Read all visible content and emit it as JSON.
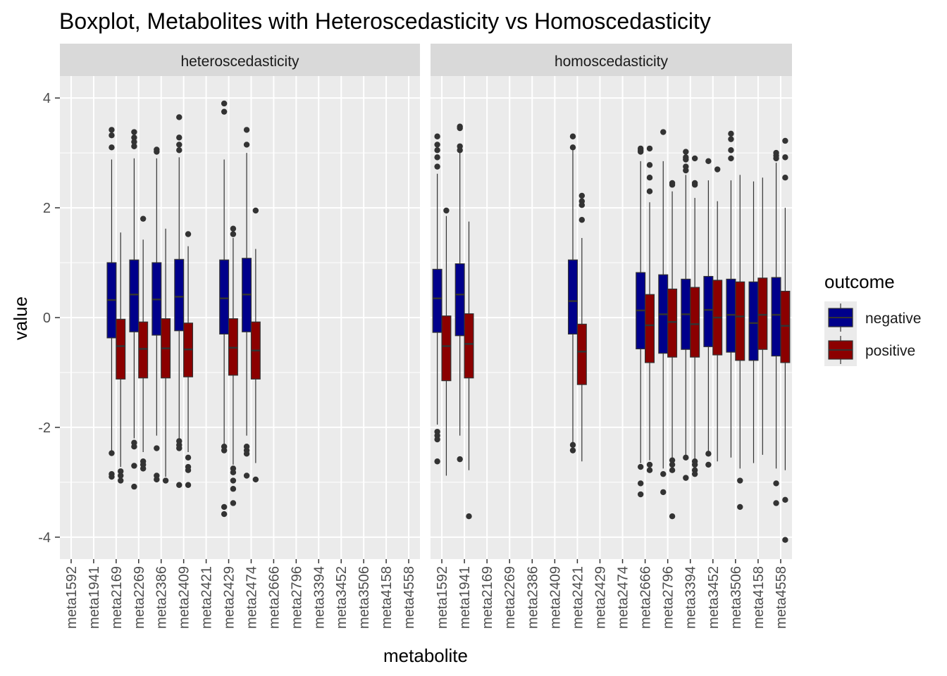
{
  "chart_data": {
    "type": "boxplot",
    "title": "Boxplot, Metabolites with Heteroscedasticity vs Homoscedasticity",
    "xlabel": "metabolite",
    "ylabel": "value",
    "ylim": [
      -4.4,
      4.4
    ],
    "y_ticks": [
      4,
      2,
      0,
      -2,
      -4
    ],
    "grid": true,
    "legend": {
      "title": "outcome",
      "position": "right",
      "entries": [
        {
          "name": "negative",
          "color": "#00008B"
        },
        {
          "name": "positive",
          "color": "#8B0000"
        }
      ]
    },
    "categories": [
      "meta1592",
      "meta1941",
      "meta2169",
      "meta2269",
      "meta2386",
      "meta2409",
      "meta2421",
      "meta2429",
      "meta2474",
      "meta2666",
      "meta2796",
      "meta3394",
      "meta3452",
      "meta3506",
      "meta4158",
      "meta4558"
    ],
    "panels": [
      {
        "label": "heteroscedasticity",
        "boxes": [
          {
            "category": "meta2169",
            "outcome": "negative",
            "q1": -0.37,
            "median": 0.32,
            "q3": 1.0,
            "whisker_low": -2.45,
            "whisker_high": 2.88,
            "outliers": [
              3.42,
              3.32,
              3.1,
              -2.47,
              -2.85,
              -2.9
            ]
          },
          {
            "category": "meta2169",
            "outcome": "positive",
            "q1": -1.12,
            "median": -0.52,
            "q3": -0.03,
            "whisker_low": -2.72,
            "whisker_high": 1.55,
            "outliers": [
              -2.8,
              -2.88,
              -2.97
            ]
          },
          {
            "category": "meta2269",
            "outcome": "negative",
            "q1": -0.26,
            "median": 0.42,
            "q3": 1.05,
            "whisker_low": -2.2,
            "whisker_high": 2.9,
            "outliers": [
              3.38,
              3.28,
              3.2,
              3.12,
              -2.28,
              -2.35,
              -2.7,
              -3.08
            ]
          },
          {
            "category": "meta2269",
            "outcome": "positive",
            "q1": -1.1,
            "median": -0.57,
            "q3": -0.08,
            "whisker_low": -2.45,
            "whisker_high": 1.42,
            "outliers": [
              1.8,
              -2.62,
              -2.68,
              -2.75
            ]
          },
          {
            "category": "meta2386",
            "outcome": "negative",
            "q1": -0.32,
            "median": 0.33,
            "q3": 1.0,
            "whisker_low": -2.15,
            "whisker_high": 2.9,
            "outliers": [
              3.06,
              3.02,
              -2.38,
              -2.88,
              -2.95
            ]
          },
          {
            "category": "meta2386",
            "outcome": "positive",
            "q1": -1.1,
            "median": -0.56,
            "q3": -0.02,
            "whisker_low": -2.9,
            "whisker_high": 1.62,
            "outliers": [
              -2.97
            ]
          },
          {
            "category": "meta2409",
            "outcome": "negative",
            "q1": -0.24,
            "median": 0.38,
            "q3": 1.06,
            "whisker_low": -2.2,
            "whisker_high": 2.92,
            "outliers": [
              3.65,
              3.28,
              3.15,
              3.05,
              -2.25,
              -2.32,
              -2.38,
              -3.05
            ]
          },
          {
            "category": "meta2409",
            "outcome": "positive",
            "q1": -1.08,
            "median": -0.58,
            "q3": -0.1,
            "whisker_low": -2.45,
            "whisker_high": 1.3,
            "outliers": [
              1.52,
              -2.55,
              -2.72,
              -2.78,
              -3.05
            ]
          },
          {
            "category": "meta2429",
            "outcome": "negative",
            "q1": -0.3,
            "median": 0.35,
            "q3": 1.05,
            "whisker_low": -2.3,
            "whisker_high": 2.88,
            "outliers": [
              3.9,
              3.75,
              -2.35,
              -2.42,
              -3.45,
              -3.58
            ]
          },
          {
            "category": "meta2429",
            "outcome": "positive",
            "q1": -1.05,
            "median": -0.55,
            "q3": -0.02,
            "whisker_low": -2.68,
            "whisker_high": 1.45,
            "outliers": [
              1.62,
              1.52,
              -2.75,
              -2.82,
              -2.97,
              -3.12,
              -3.38
            ]
          },
          {
            "category": "meta2474",
            "outcome": "negative",
            "q1": -0.26,
            "median": 0.42,
            "q3": 1.08,
            "whisker_low": -2.15,
            "whisker_high": 3.0,
            "outliers": [
              3.42,
              3.15,
              -2.35,
              -2.42,
              -2.48,
              -2.88
            ]
          },
          {
            "category": "meta2474",
            "outcome": "positive",
            "q1": -1.12,
            "median": -0.6,
            "q3": -0.08,
            "whisker_low": -2.65,
            "whisker_high": 1.25,
            "outliers": [
              1.95,
              -2.95
            ]
          }
        ]
      },
      {
        "label": "homoscedasticity",
        "boxes": [
          {
            "category": "meta1592",
            "outcome": "negative",
            "q1": -0.27,
            "median": 0.35,
            "q3": 0.88,
            "whisker_low": -1.95,
            "whisker_high": 2.62,
            "outliers": [
              3.3,
              3.15,
              3.05,
              2.92,
              2.75,
              -2.08,
              -2.15,
              -2.22,
              -2.62
            ]
          },
          {
            "category": "meta1592",
            "outcome": "positive",
            "q1": -1.15,
            "median": -0.52,
            "q3": 0.03,
            "whisker_low": -2.88,
            "whisker_high": 1.85,
            "outliers": [
              1.95
            ]
          },
          {
            "category": "meta1941",
            "outcome": "negative",
            "q1": -0.33,
            "median": 0.42,
            "q3": 0.98,
            "whisker_low": -2.15,
            "whisker_high": 3.0,
            "outliers": [
              3.48,
              3.45,
              3.12,
              3.05,
              -2.58
            ]
          },
          {
            "category": "meta1941",
            "outcome": "positive",
            "q1": -1.1,
            "median": -0.48,
            "q3": 0.07,
            "whisker_low": -2.78,
            "whisker_high": 1.75,
            "outliers": [
              -3.62
            ]
          },
          {
            "category": "meta2421",
            "outcome": "negative",
            "q1": -0.3,
            "median": 0.3,
            "q3": 1.05,
            "whisker_low": -2.3,
            "whisker_high": 3.05,
            "outliers": [
              3.3,
              3.1,
              -2.32,
              -2.42
            ]
          },
          {
            "category": "meta2421",
            "outcome": "positive",
            "q1": -1.22,
            "median": -0.62,
            "q3": -0.12,
            "whisker_low": -2.62,
            "whisker_high": 1.45,
            "outliers": [
              2.22,
              2.12,
              2.05,
              1.78
            ]
          },
          {
            "category": "meta2666",
            "outcome": "negative",
            "q1": -0.57,
            "median": 0.13,
            "q3": 0.82,
            "whisker_low": -2.65,
            "whisker_high": 2.85,
            "outliers": [
              3.08,
              3.05,
              3.02,
              -2.72,
              -3.02,
              -3.22
            ]
          },
          {
            "category": "meta2666",
            "outcome": "positive",
            "q1": -0.82,
            "median": -0.14,
            "q3": 0.42,
            "whisker_low": -2.6,
            "whisker_high": 2.1,
            "outliers": [
              3.08,
              2.78,
              2.55,
              2.3,
              -2.68,
              -2.78
            ]
          },
          {
            "category": "meta2796",
            "outcome": "negative",
            "q1": -0.65,
            "median": 0.06,
            "q3": 0.78,
            "whisker_low": -2.75,
            "whisker_high": 2.85,
            "outliers": [
              3.38,
              -2.85,
              -3.18
            ]
          },
          {
            "category": "meta2796",
            "outcome": "positive",
            "q1": -0.72,
            "median": -0.08,
            "q3": 0.52,
            "whisker_low": -2.55,
            "whisker_high": 2.3,
            "outliers": [
              2.45,
              2.42,
              -2.6,
              -2.68,
              -2.78,
              -3.62
            ]
          },
          {
            "category": "meta3394",
            "outcome": "negative",
            "q1": -0.58,
            "median": 0.06,
            "q3": 0.7,
            "whisker_low": -2.5,
            "whisker_high": 2.6,
            "outliers": [
              3.02,
              2.92,
              2.88,
              2.75,
              2.68,
              -2.55,
              -2.92
            ]
          },
          {
            "category": "meta3394",
            "outcome": "positive",
            "q1": -0.72,
            "median": -0.12,
            "q3": 0.55,
            "whisker_low": -2.58,
            "whisker_high": 2.18,
            "outliers": [
              2.9,
              2.45,
              2.42,
              -2.62,
              -2.68,
              -2.78,
              -2.85
            ]
          },
          {
            "category": "meta3452",
            "outcome": "negative",
            "q1": -0.53,
            "median": 0.14,
            "q3": 0.75,
            "whisker_low": -2.45,
            "whisker_high": 2.5,
            "outliers": [
              2.85,
              -2.48,
              -2.68
            ]
          },
          {
            "category": "meta3452",
            "outcome": "positive",
            "q1": -0.68,
            "median": 0.0,
            "q3": 0.68,
            "whisker_low": -2.62,
            "whisker_high": 2.12,
            "outliers": [
              2.7
            ]
          },
          {
            "category": "meta3506",
            "outcome": "negative",
            "q1": -0.63,
            "median": 0.05,
            "q3": 0.7,
            "whisker_low": -2.55,
            "whisker_high": 2.5,
            "outliers": [
              3.35,
              3.25,
              3.05,
              2.9
            ]
          },
          {
            "category": "meta3506",
            "outcome": "positive",
            "q1": -0.78,
            "median": 0.02,
            "q3": 0.65,
            "whisker_low": -2.75,
            "whisker_high": 2.6,
            "outliers": [
              -2.97,
              -3.45
            ]
          },
          {
            "category": "meta4158",
            "outcome": "negative",
            "q1": -0.78,
            "median": -0.1,
            "q3": 0.65,
            "whisker_low": -2.65,
            "whisker_high": 2.48,
            "outliers": []
          },
          {
            "category": "meta4158",
            "outcome": "positive",
            "q1": -0.58,
            "median": 0.05,
            "q3": 0.72,
            "whisker_low": -2.5,
            "whisker_high": 2.55,
            "outliers": []
          },
          {
            "category": "meta4558",
            "outcome": "negative",
            "q1": -0.7,
            "median": 0.05,
            "q3": 0.73,
            "whisker_low": -2.75,
            "whisker_high": 2.82,
            "outliers": [
              3.0,
              2.95,
              2.9,
              -3.02,
              -3.38
            ]
          },
          {
            "category": "meta4558",
            "outcome": "positive",
            "q1": -0.82,
            "median": -0.15,
            "q3": 0.48,
            "whisker_low": -2.78,
            "whisker_high": 2.0,
            "outliers": [
              3.22,
              2.92,
              2.55,
              -3.32,
              -4.05
            ]
          }
        ]
      }
    ]
  }
}
